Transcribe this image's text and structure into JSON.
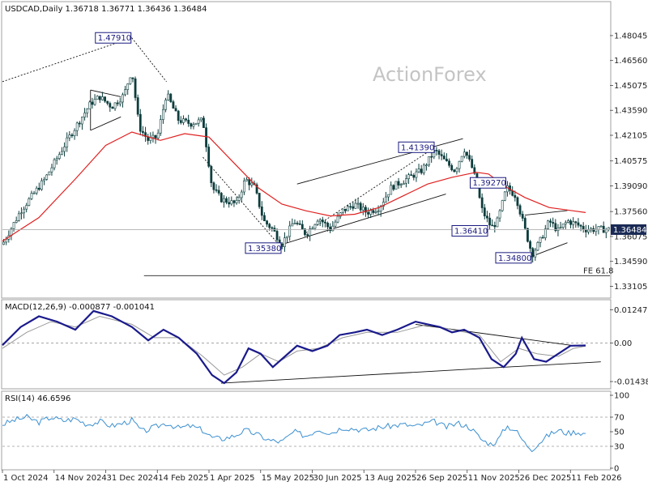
{
  "chart_data": [
    {
      "type": "candlestick",
      "title": "USDCAD,Daily  1.36718 1.36771 1.36436 1.36484",
      "watermark": "ActionForex",
      "ylim": [
        1.325,
        1.492
      ],
      "ticks": [
        "1.48045",
        "1.46560",
        "1.45075",
        "1.43590",
        "1.42105",
        "1.40575",
        "1.39090",
        "1.37560",
        "1.36075",
        "1.34590",
        "1.33105"
      ],
      "tick_values": [
        1.48045,
        1.4656,
        1.45075,
        1.4359,
        1.42105,
        1.40575,
        1.3909,
        1.3756,
        1.36075,
        1.3459,
        1.33105
      ],
      "current_price_label": "1.36484",
      "current_price": 1.36484,
      "fe_label": "FE 61.8",
      "fe_value": 1.3374,
      "annotations": [
        {
          "label": "1.47910",
          "x": 0.213,
          "value": 1.4791
        },
        {
          "label": "1.35380",
          "x": 0.46,
          "value": 1.3538
        },
        {
          "label": "1.41390",
          "x": 0.712,
          "value": 1.4139
        },
        {
          "label": "1.39270",
          "x": 0.83,
          "value": 1.3927
        },
        {
          "label": "1.36410",
          "x": 0.8,
          "value": 1.3641
        },
        {
          "label": "1.34800",
          "x": 0.872,
          "value": 1.348
        }
      ],
      "key_points": [
        [
          0.0,
          1.356
        ],
        [
          0.03,
          1.376
        ],
        [
          0.07,
          1.395
        ],
        [
          0.11,
          1.42
        ],
        [
          0.145,
          1.44
        ],
        [
          0.16,
          1.444
        ],
        [
          0.18,
          1.438
        ],
        [
          0.2,
          1.445
        ],
        [
          0.213,
          1.46
        ],
        [
          0.225,
          1.426
        ],
        [
          0.24,
          1.418
        ],
        [
          0.255,
          1.42
        ],
        [
          0.27,
          1.446
        ],
        [
          0.29,
          1.43
        ],
        [
          0.31,
          1.428
        ],
        [
          0.33,
          1.43
        ],
        [
          0.345,
          1.39
        ],
        [
          0.36,
          1.383
        ],
        [
          0.385,
          1.38
        ],
        [
          0.4,
          1.395
        ],
        [
          0.415,
          1.39
        ],
        [
          0.43,
          1.37
        ],
        [
          0.445,
          1.365
        ],
        [
          0.46,
          1.356
        ],
        [
          0.48,
          1.37
        ],
        [
          0.5,
          1.362
        ],
        [
          0.52,
          1.372
        ],
        [
          0.54,
          1.365
        ],
        [
          0.56,
          1.376
        ],
        [
          0.58,
          1.38
        ],
        [
          0.6,
          1.375
        ],
        [
          0.62,
          1.378
        ],
        [
          0.64,
          1.39
        ],
        [
          0.665,
          1.395
        ],
        [
          0.69,
          1.4
        ],
        [
          0.712,
          1.412
        ],
        [
          0.73,
          1.405
        ],
        [
          0.745,
          1.4
        ],
        [
          0.76,
          1.413
        ],
        [
          0.775,
          1.4
        ],
        [
          0.79,
          1.376
        ],
        [
          0.805,
          1.366
        ],
        [
          0.815,
          1.37
        ],
        [
          0.83,
          1.39
        ],
        [
          0.845,
          1.385
        ],
        [
          0.86,
          1.365
        ],
        [
          0.872,
          1.35
        ],
        [
          0.885,
          1.358
        ],
        [
          0.9,
          1.37
        ],
        [
          0.915,
          1.364
        ],
        [
          0.93,
          1.37
        ],
        [
          0.945,
          1.368
        ],
        [
          0.96,
          1.365
        ]
      ],
      "ma_points": [
        [
          0.0,
          1.358
        ],
        [
          0.06,
          1.372
        ],
        [
          0.12,
          1.395
        ],
        [
          0.17,
          1.415
        ],
        [
          0.213,
          1.423
        ],
        [
          0.26,
          1.418
        ],
        [
          0.3,
          1.422
        ],
        [
          0.34,
          1.42
        ],
        [
          0.38,
          1.405
        ],
        [
          0.42,
          1.39
        ],
        [
          0.46,
          1.38
        ],
        [
          0.5,
          1.376
        ],
        [
          0.54,
          1.373
        ],
        [
          0.58,
          1.374
        ],
        [
          0.62,
          1.378
        ],
        [
          0.66,
          1.385
        ],
        [
          0.7,
          1.392
        ],
        [
          0.74,
          1.396
        ],
        [
          0.78,
          1.399
        ],
        [
          0.8,
          1.398
        ],
        [
          0.83,
          1.39
        ],
        [
          0.86,
          1.384
        ],
        [
          0.9,
          1.378
        ],
        [
          0.94,
          1.376
        ],
        [
          0.96,
          1.375
        ]
      ],
      "trendlines": [
        {
          "from": [
            0.0,
            1.453
          ],
          "to": [
            0.213,
            1.4791
          ],
          "style": "dotted"
        },
        {
          "from": [
            0.213,
            1.4791
          ],
          "to": [
            0.27,
            1.453
          ],
          "style": "dotted"
        },
        {
          "from": [
            0.33,
            1.408
          ],
          "to": [
            0.46,
            1.3538
          ],
          "style": "dotted"
        },
        {
          "from": [
            0.5,
            1.363
          ],
          "to": [
            0.712,
            1.4139
          ],
          "style": "dotted"
        },
        {
          "from": [
            0.485,
            1.392
          ],
          "to": [
            0.758,
            1.419
          ],
          "style": "solid"
        },
        {
          "from": [
            0.46,
            1.356
          ],
          "to": [
            0.73,
            1.386
          ],
          "style": "solid"
        },
        {
          "from": [
            0.145,
            1.448
          ],
          "to": [
            0.195,
            1.444
          ],
          "style": "solid"
        },
        {
          "from": [
            0.145,
            1.424
          ],
          "to": [
            0.195,
            1.432
          ],
          "style": "solid"
        },
        {
          "from": [
            0.145,
            1.424
          ],
          "to": [
            0.145,
            1.448
          ],
          "style": "solid"
        },
        {
          "from": [
            0.86,
            1.3735
          ],
          "to": [
            0.93,
            1.3762
          ],
          "style": "solid"
        },
        {
          "from": [
            0.872,
            1.349
          ],
          "to": [
            0.93,
            1.357
          ],
          "style": "solid"
        }
      ]
    },
    {
      "type": "line",
      "title": "MACD(12,26,9) -0.000877 -0.001041",
      "ylim": [
        -0.0165,
        0.0144
      ],
      "ticks": [
        "0.012472",
        "0.00",
        "-0.014389"
      ],
      "tick_values": [
        0.012472,
        0.0,
        -0.014389
      ],
      "macd_points": [
        [
          0.0,
          -0.0008
        ],
        [
          0.03,
          0.006
        ],
        [
          0.06,
          0.01
        ],
        [
          0.09,
          0.008
        ],
        [
          0.12,
          0.005
        ],
        [
          0.15,
          0.012
        ],
        [
          0.18,
          0.01
        ],
        [
          0.213,
          0.006
        ],
        [
          0.24,
          0.001
        ],
        [
          0.265,
          0.005
        ],
        [
          0.29,
          0.002
        ],
        [
          0.32,
          -0.004
        ],
        [
          0.345,
          -0.012
        ],
        [
          0.365,
          -0.015
        ],
        [
          0.385,
          -0.011
        ],
        [
          0.405,
          -0.002
        ],
        [
          0.425,
          -0.004
        ],
        [
          0.445,
          -0.009
        ],
        [
          0.465,
          -0.005
        ],
        [
          0.485,
          -0.001
        ],
        [
          0.51,
          -0.003
        ],
        [
          0.535,
          -0.001
        ],
        [
          0.555,
          0.003
        ],
        [
          0.58,
          0.004
        ],
        [
          0.6,
          0.005
        ],
        [
          0.625,
          0.003
        ],
        [
          0.65,
          0.005
        ],
        [
          0.68,
          0.008
        ],
        [
          0.7,
          0.007
        ],
        [
          0.72,
          0.006
        ],
        [
          0.74,
          0.004
        ],
        [
          0.76,
          0.005
        ],
        [
          0.785,
          0.002
        ],
        [
          0.805,
          -0.006
        ],
        [
          0.825,
          -0.009
        ],
        [
          0.845,
          -0.004
        ],
        [
          0.855,
          0.002
        ],
        [
          0.875,
          -0.006
        ],
        [
          0.895,
          -0.007
        ],
        [
          0.915,
          -0.004
        ],
        [
          0.935,
          -0.001
        ],
        [
          0.96,
          -0.0009
        ]
      ],
      "signal_points": [
        [
          0.0,
          -0.002
        ],
        [
          0.04,
          0.004
        ],
        [
          0.08,
          0.008
        ],
        [
          0.12,
          0.006
        ],
        [
          0.16,
          0.01
        ],
        [
          0.213,
          0.007
        ],
        [
          0.25,
          0.002
        ],
        [
          0.29,
          0.002
        ],
        [
          0.33,
          -0.005
        ],
        [
          0.365,
          -0.012
        ],
        [
          0.395,
          -0.009
        ],
        [
          0.425,
          -0.004
        ],
        [
          0.455,
          -0.007
        ],
        [
          0.485,
          -0.003
        ],
        [
          0.52,
          -0.002
        ],
        [
          0.56,
          0.002
        ],
        [
          0.6,
          0.004
        ],
        [
          0.65,
          0.004
        ],
        [
          0.7,
          0.007
        ],
        [
          0.74,
          0.005
        ],
        [
          0.785,
          0.003
        ],
        [
          0.82,
          -0.007
        ],
        [
          0.85,
          -0.002
        ],
        [
          0.88,
          -0.004
        ],
        [
          0.915,
          -0.005
        ],
        [
          0.94,
          -0.002
        ],
        [
          0.96,
          -0.0011
        ]
      ],
      "trendlines": [
        {
          "from": [
            0.36,
            -0.015
          ],
          "to": [
            0.985,
            -0.007
          ],
          "style": "solid"
        },
        {
          "from": [
            0.68,
            0.007
          ],
          "to": [
            0.935,
            -0.0008
          ],
          "style": "solid"
        }
      ]
    },
    {
      "type": "line",
      "title": "RSI(14) 46.6596",
      "ylim": [
        0,
        100
      ],
      "ticks": [
        "100",
        "70",
        "50",
        "30",
        "0"
      ],
      "tick_values": [
        100,
        70,
        50,
        30,
        0
      ],
      "rsi_points": [
        [
          0.0,
          60
        ],
        [
          0.02,
          66
        ],
        [
          0.04,
          70
        ],
        [
          0.06,
          63
        ],
        [
          0.08,
          70
        ],
        [
          0.1,
          65
        ],
        [
          0.12,
          68
        ],
        [
          0.14,
          60
        ],
        [
          0.16,
          64
        ],
        [
          0.18,
          58
        ],
        [
          0.2,
          62
        ],
        [
          0.213,
          66
        ],
        [
          0.23,
          50
        ],
        [
          0.25,
          56
        ],
        [
          0.27,
          62
        ],
        [
          0.29,
          55
        ],
        [
          0.31,
          58
        ],
        [
          0.33,
          52
        ],
        [
          0.345,
          42
        ],
        [
          0.36,
          40
        ],
        [
          0.38,
          44
        ],
        [
          0.4,
          52
        ],
        [
          0.42,
          46
        ],
        [
          0.44,
          38
        ],
        [
          0.46,
          36
        ],
        [
          0.48,
          50
        ],
        [
          0.5,
          44
        ],
        [
          0.52,
          54
        ],
        [
          0.54,
          48
        ],
        [
          0.56,
          56
        ],
        [
          0.58,
          54
        ],
        [
          0.6,
          52
        ],
        [
          0.62,
          56
        ],
        [
          0.64,
          58
        ],
        [
          0.66,
          60
        ],
        [
          0.68,
          57
        ],
        [
          0.7,
          62
        ],
        [
          0.712,
          64
        ],
        [
          0.73,
          56
        ],
        [
          0.75,
          62
        ],
        [
          0.77,
          56
        ],
        [
          0.79,
          38
        ],
        [
          0.805,
          33
        ],
        [
          0.815,
          38
        ],
        [
          0.83,
          58
        ],
        [
          0.845,
          52
        ],
        [
          0.86,
          34
        ],
        [
          0.872,
          26
        ],
        [
          0.885,
          36
        ],
        [
          0.9,
          46
        ],
        [
          0.915,
          52
        ],
        [
          0.93,
          48
        ],
        [
          0.945,
          50
        ],
        [
          0.96,
          47
        ]
      ]
    }
  ],
  "x_axis": {
    "ticks": [
      "1 Oct 2024",
      "14 Nov 2024",
      "31 Dec 2024",
      "14 Feb 2025",
      "1 Apr 2025",
      "15 May 2025",
      "30 Jun 2025",
      "13 Aug 2025",
      "26 Sep 2025",
      "11 Nov 2025",
      "26 Dec 2025",
      "11 Feb 2026"
    ],
    "positions": [
      0.0,
      0.085,
      0.17,
      0.255,
      0.34,
      0.425,
      0.51,
      0.595,
      0.68,
      0.765,
      0.85,
      0.935
    ]
  },
  "colors": {
    "candle_up": "#0d3d3d",
    "candle_down": "#0d3d3d",
    "ma": "#e02020",
    "macd": "#1a1a8c",
    "signal": "#999999",
    "rsi": "#3a8fd0",
    "annotation": "#1a1a80",
    "current_price_bg": "#1a2a55",
    "grid": "#ffffff"
  }
}
